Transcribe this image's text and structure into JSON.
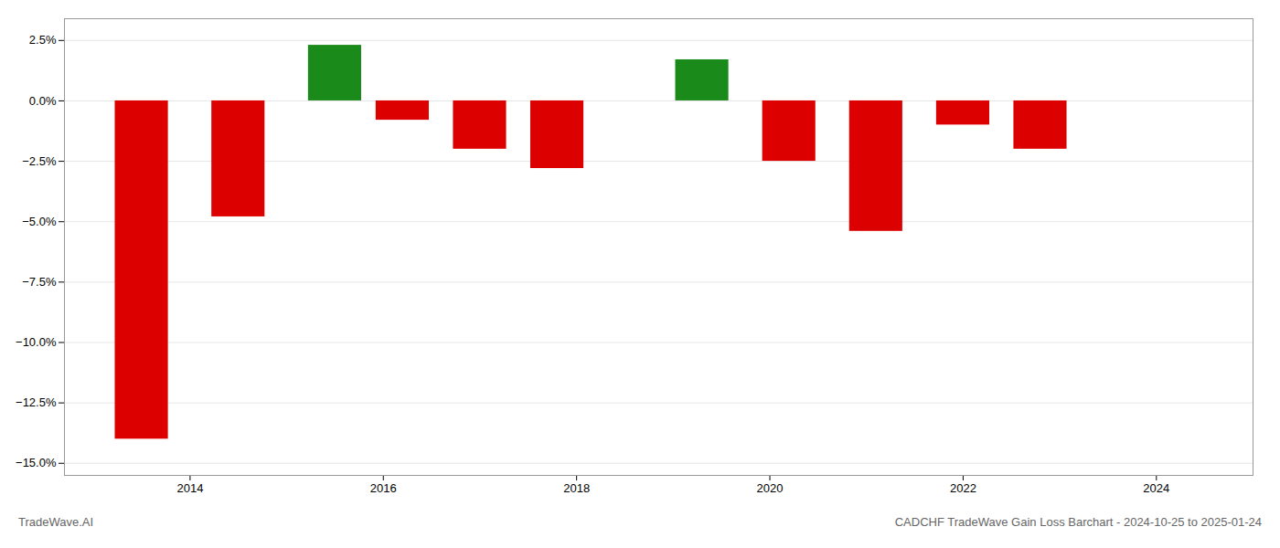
{
  "chart_data": {
    "type": "bar",
    "title": "CADCHF TradeWave Gain Loss Barchart - 2024-10-25 to 2025-01-24",
    "annotations": [
      {
        "text": "TradeWave.AI"
      }
    ],
    "x": [
      2013.5,
      2014.5,
      2015.5,
      2016.2,
      2017.0,
      2017.8,
      2019.3,
      2020.2,
      2021.1,
      2022.0,
      2022.8
    ],
    "values": [
      -0.14,
      -0.048,
      0.023,
      -0.008,
      -0.02,
      -0.028,
      0.017,
      -0.025,
      -0.054,
      -0.01,
      -0.02
    ],
    "colors": [
      "#dd0000",
      "#dd0000",
      "#1a8a1a",
      "#dd0000",
      "#dd0000",
      "#dd0000",
      "#1a8a1a",
      "#dd0000",
      "#dd0000",
      "#dd0000",
      "#dd0000"
    ],
    "xlim": [
      2012.7,
      2025.0
    ],
    "xticks": [
      2014,
      2016,
      2018,
      2020,
      2022,
      2024
    ],
    "ylim": [
      -0.155,
      0.034
    ],
    "yticks": [
      {
        "value": -0.15,
        "label": "−15.0%"
      },
      {
        "value": -0.125,
        "label": "−12.5%"
      },
      {
        "value": -0.1,
        "label": "−10.0%"
      },
      {
        "value": -0.075,
        "label": "−7.5%"
      },
      {
        "value": -0.05,
        "label": "−5.0%"
      },
      {
        "value": -0.025,
        "label": "−2.5%"
      },
      {
        "value": 0.0,
        "label": "0.0%"
      },
      {
        "value": 0.025,
        "label": "2.5%"
      }
    ],
    "grid": true
  }
}
